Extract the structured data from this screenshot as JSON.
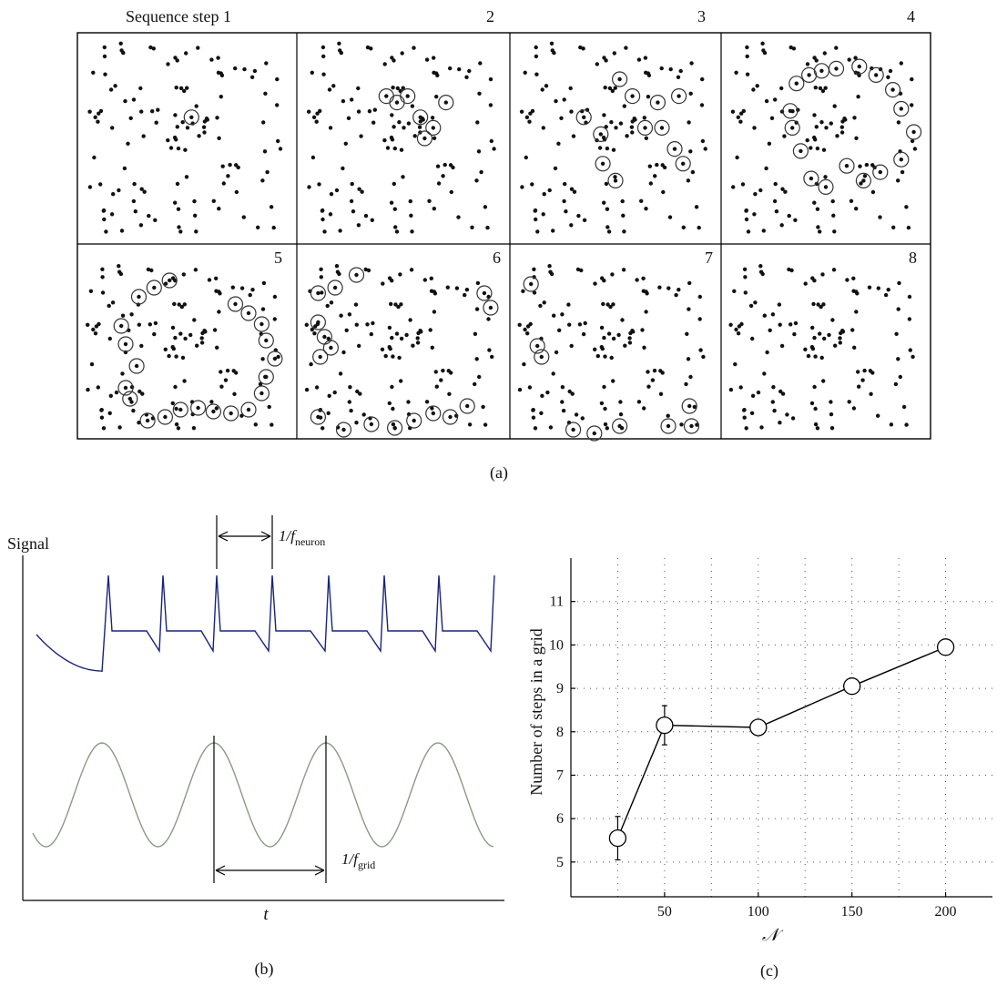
{
  "panel_a": {
    "title": "Sequence step 1",
    "step_labels": [
      "2",
      "3",
      "4",
      "5",
      "6",
      "7",
      "8"
    ],
    "caption": "(a)"
  },
  "panel_b": {
    "ylabel": "Signal",
    "xlabel": "t",
    "neuron_period_label": "1/f",
    "neuron_period_sub": "neuron",
    "grid_period_label": "1/f",
    "grid_period_sub": "grid",
    "caption": "(b)",
    "colors": {
      "neuron_signal": "#1a237e",
      "grid_signal": "#8a9a86"
    }
  },
  "panel_c": {
    "caption": "(c)"
  },
  "chart_data": {
    "type": "line",
    "xlabel": "𝒩",
    "ylabel": "Number of steps in a grid",
    "x": [
      25,
      50,
      100,
      150,
      200
    ],
    "y": [
      5.55,
      8.15,
      8.1,
      9.05,
      9.95
    ],
    "error": [
      0.5,
      0.45,
      0,
      0,
      0
    ],
    "xticks": [
      50,
      100,
      150,
      200
    ],
    "yticks": [
      5,
      6,
      7,
      8,
      9,
      10,
      11
    ],
    "xlim": [
      0,
      225
    ],
    "ylim": [
      4.2,
      12
    ],
    "grid": true
  }
}
